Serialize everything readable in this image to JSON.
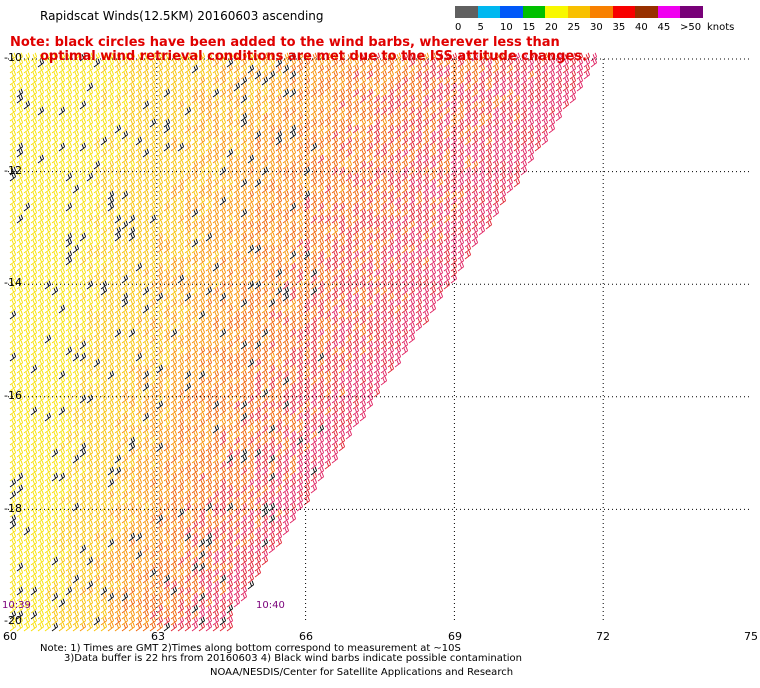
{
  "title": "Rapidscat Winds(12.5KM) 20160603 ascending",
  "note_line1": "Note: black circles have been added to the wind barbs, wherever less than",
  "note_line2": "optimal wind retrieval conditions are met due to the ISS attitude changes.",
  "colorbar": {
    "unit": "knots",
    "labels": [
      "0",
      "5",
      "10",
      "15",
      "20",
      "25",
      "30",
      "35",
      "40",
      "45",
      ">50"
    ],
    "colors": [
      "#606060",
      "#00b8f0",
      "#0058f8",
      "#00c000",
      "#f8f800",
      "#f8c000",
      "#f88000",
      "#f80000",
      "#983000",
      "#f000f0",
      "#780078"
    ]
  },
  "lat_ticks": [
    "-10",
    "-12",
    "-14",
    "-16",
    "-18",
    "-20"
  ],
  "lon_ticks": [
    "60",
    "63",
    "66",
    "69",
    "72",
    "75"
  ],
  "time_labels": [
    "10:39",
    "10:40"
  ],
  "footer": {
    "line1": "Note: 1) Times are GMT 2)Times along bottom correspond to measurement at ~10S",
    "line2": "3)Data buffer is 22 hrs from 20160603 4) Black wind barbs indicate possible contamination",
    "credit": "NOAA/NESDIS/Center for Satellite Applications and Research"
  },
  "map": {
    "lat_range": [
      -20,
      -10
    ],
    "lon_range": [
      60,
      75
    ],
    "swath_edge": {
      "top_lon": 72,
      "bottom_lon": 64.5
    },
    "barb_colors": [
      "#f8e000",
      "#f8c000",
      "#f89000",
      "#f06000",
      "#e02030",
      "#e02060"
    ],
    "contaminated_color": "#000000"
  }
}
